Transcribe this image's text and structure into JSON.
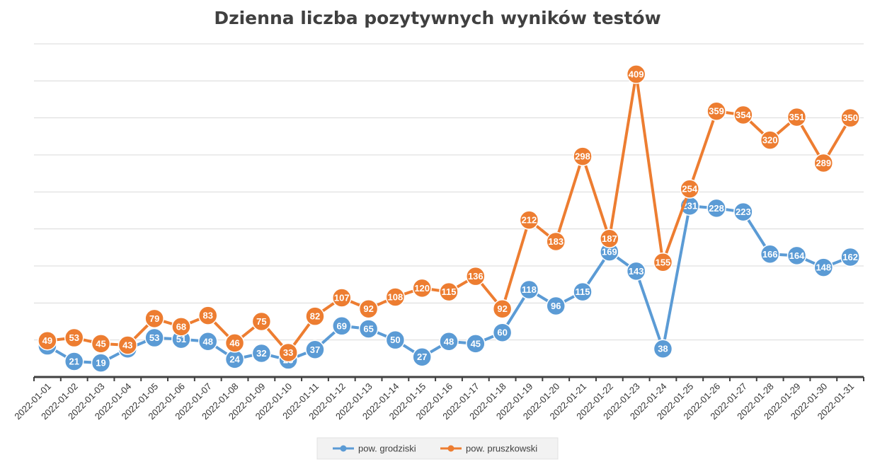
{
  "chart_data": {
    "type": "line",
    "title": "Dzienna liczba pozytywnych wyników testów",
    "xlabel": "",
    "ylabel": "",
    "ylim": [
      0,
      450
    ],
    "grid": true,
    "legend": "bottom",
    "categories": [
      "2022-01-01",
      "2022-01-02",
      "2022-01-03",
      "2022-01-04",
      "2022-01-05",
      "2022-01-06",
      "2022-01-07",
      "2022-01-08",
      "2022-01-09",
      "2022-01-10",
      "2022-01-11",
      "2022-01-12",
      "2022-01-13",
      "2022-01-14",
      "2022-01-15",
      "2022-01-16",
      "2022-01-17",
      "2022-01-18",
      "2022-01-19",
      "2022-01-20",
      "2022-01-21",
      "2022-01-22",
      "2022-01-23",
      "2022-01-24",
      "2022-01-25",
      "2022-01-26",
      "2022-01-27",
      "2022-01-28",
      "2022-01-29",
      "2022-01-30",
      "2022-01-31"
    ],
    "series": [
      {
        "name": "pow. grodziski",
        "color": "#5b9bd5",
        "values": [
          42,
          21,
          19,
          38,
          53,
          51,
          48,
          24,
          32,
          23,
          37,
          69,
          65,
          50,
          27,
          48,
          45,
          60,
          118,
          96,
          115,
          169,
          143,
          38,
          231,
          228,
          223,
          166,
          164,
          148,
          162
        ]
      },
      {
        "name": "pow. pruszkowski",
        "color": "#ed7d31",
        "values": [
          49,
          53,
          45,
          43,
          79,
          68,
          83,
          46,
          75,
          33,
          82,
          107,
          92,
          108,
          120,
          115,
          136,
          92,
          212,
          183,
          298,
          187,
          409,
          155,
          254,
          359,
          354,
          320,
          351,
          289,
          350
        ]
      }
    ]
  }
}
